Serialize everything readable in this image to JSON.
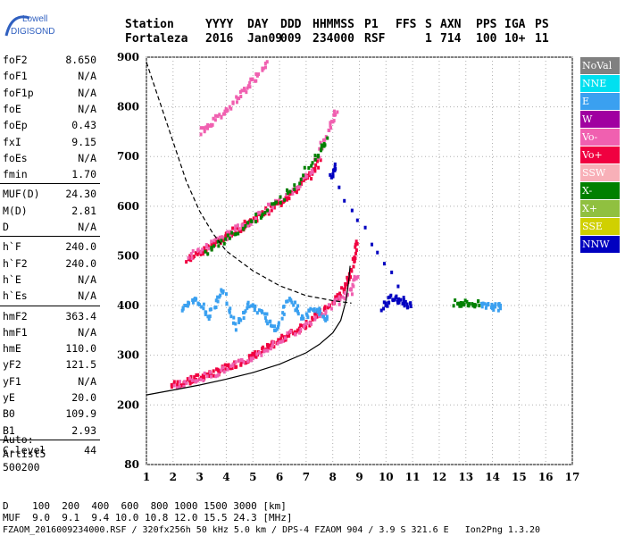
{
  "logo": {
    "line1": "Lowell",
    "line2": "DIGISONDE"
  },
  "header": {
    "line1": [
      "Station",
      "YYYY",
      "DAY",
      "DDD",
      "HHMMSS",
      "P1",
      "FFS",
      "S",
      "AXN",
      "PPS",
      "IGA",
      "PS"
    ],
    "line2": [
      "Fortaleza",
      "2016",
      "Jan09",
      "009",
      "234000",
      "RSF",
      "",
      "1",
      "714",
      "100",
      "10+",
      "11"
    ]
  },
  "params": {
    "group1": [
      [
        "foF2",
        "8.650"
      ],
      [
        "foF1",
        "N/A"
      ],
      [
        "foF1p",
        "N/A"
      ],
      [
        "foE",
        "N/A"
      ],
      [
        "foEp",
        "0.43"
      ],
      [
        "fxI",
        "9.15"
      ],
      [
        "foEs",
        "N/A"
      ],
      [
        "fmin",
        "1.70"
      ]
    ],
    "group2": [
      [
        "MUF(D)",
        "24.30"
      ],
      [
        "M(D)",
        "2.81"
      ],
      [
        "D",
        "N/A"
      ]
    ],
    "group3": [
      [
        "h`F",
        "240.0"
      ],
      [
        "h`F2",
        "240.0"
      ],
      [
        "h`E",
        "N/A"
      ],
      [
        "h`Es",
        "N/A"
      ]
    ],
    "group4": [
      [
        "hmF2",
        "363.4"
      ],
      [
        "hmF1",
        "N/A"
      ],
      [
        "hmE",
        "110.0"
      ],
      [
        "yF2",
        "121.5"
      ],
      [
        "yF1",
        "N/A"
      ],
      [
        "yE",
        "20.0"
      ],
      [
        "B0",
        "109.9"
      ],
      [
        "B1",
        "2.93"
      ]
    ],
    "group5": [
      [
        "C-level",
        "44"
      ]
    ]
  },
  "auto": {
    "line1": "Auto:",
    "line2": "Artist5",
    "line3": "500200"
  },
  "legend": [
    {
      "label": "NoVal",
      "color": "#808080"
    },
    {
      "label": "NNE",
      "color": "#00e0f0"
    },
    {
      "label": "E",
      "color": "#3aa0f0"
    },
    {
      "label": "W",
      "color": "#a000a0"
    },
    {
      "label": "Vo-",
      "color": "#f060b0"
    },
    {
      "label": "Vo+",
      "color": "#f00040"
    },
    {
      "label": "SSW",
      "color": "#f8b0b8"
    },
    {
      "label": "X-",
      "color": "#008000"
    },
    {
      "label": "X+",
      "color": "#90c040"
    },
    {
      "label": "SSE",
      "color": "#d0d000"
    },
    {
      "label": "NNW",
      "color": "#0000c0"
    }
  ],
  "bottom": {
    "line1": "D    100  200  400  600  800 1000 1500 3000 [km]",
    "line2": "MUF  9.0  9.1  9.4 10.0 10.8 12.0 15.5 24.3 [MHz]",
    "line3": "FZAOM_2016009234000.RSF / 320fx256h 50 kHz 5.0 km / DPS-4 FZAOM 904 / 3.9 S 321.6 E   Ion2Png 1.3.20"
  },
  "chart_data": {
    "type": "scatter",
    "xlim": [
      1,
      17
    ],
    "ylim": [
      80,
      900
    ],
    "x_ticks": [
      1,
      2,
      3,
      4,
      5,
      6,
      7,
      8,
      9,
      10,
      11,
      12,
      13,
      14,
      15,
      16,
      17
    ],
    "y_ticks": [
      80,
      200,
      300,
      400,
      500,
      600,
      700,
      800,
      900
    ],
    "grid": true,
    "series": [
      {
        "name": "Vo+",
        "color": "#f00040",
        "traces": [
          [
            [
              1.9,
              243
            ],
            [
              2.5,
              250
            ],
            [
              3,
              260
            ],
            [
              3.5,
              268
            ],
            [
              4,
              278
            ],
            [
              4.5,
              290
            ],
            [
              5,
              302
            ],
            [
              5.5,
              318
            ],
            [
              6,
              335
            ],
            [
              6.5,
              350
            ],
            [
              7,
              368
            ],
            [
              7.5,
              390
            ],
            [
              8,
              410
            ],
            [
              8.4,
              440
            ],
            [
              8.7,
              480
            ],
            [
              8.9,
              540
            ]
          ],
          [
            [
              2.5,
              495
            ],
            [
              3,
              510
            ],
            [
              3.5,
              528
            ],
            [
              4,
              545
            ],
            [
              4.5,
              560
            ],
            [
              5,
              578
            ],
            [
              5.5,
              595
            ],
            [
              6,
              612
            ],
            [
              6.5,
              632
            ],
            [
              7,
              660
            ],
            [
              7.5,
              695
            ]
          ]
        ]
      },
      {
        "name": "Vo-",
        "color": "#f060b0",
        "traces": [
          [
            [
              2,
              242
            ],
            [
              3,
              258
            ],
            [
              4,
              276
            ],
            [
              5,
              300
            ],
            [
              6,
              334
            ],
            [
              7,
              366
            ],
            [
              8,
              405
            ],
            [
              8.6,
              430
            ],
            [
              8.9,
              470
            ]
          ],
          [
            [
              2.5,
              500
            ],
            [
              3.5,
              530
            ],
            [
              4.5,
              562
            ],
            [
              5.5,
              598
            ],
            [
              6.5,
              636
            ],
            [
              7.2,
              680
            ],
            [
              7.8,
              760
            ],
            [
              8.1,
              800
            ]
          ],
          [
            [
              3,
              755
            ],
            [
              3.5,
              775
            ],
            [
              4,
              800
            ],
            [
              4.5,
              830
            ],
            [
              5,
              860
            ],
            [
              5.5,
              890
            ]
          ]
        ]
      },
      {
        "name": "X-",
        "color": "#008000",
        "traces": [
          [
            [
              3.2,
              510
            ],
            [
              4.2,
              545
            ],
            [
              5.2,
              585
            ],
            [
              6.2,
              625
            ],
            [
              7.3,
              700
            ],
            [
              7.8,
              740
            ]
          ],
          [
            [
              12.5,
              410
            ],
            [
              13,
              408
            ],
            [
              13.5,
              405
            ]
          ]
        ]
      },
      {
        "name": "E",
        "color": "#3aa0f0",
        "traces": [
          [
            [
              2.3,
              395
            ],
            [
              2.8,
              420
            ],
            [
              3.3,
              380
            ],
            [
              3.8,
              440
            ],
            [
              4.3,
              360
            ],
            [
              4.8,
              410
            ],
            [
              5.3,
              390
            ],
            [
              5.8,
              350
            ],
            [
              6.3,
              420
            ],
            [
              6.8,
              380
            ],
            [
              7.3,
              400
            ],
            [
              7.8,
              370
            ]
          ],
          [
            [
              13.5,
              402
            ],
            [
              14,
              401
            ],
            [
              14.3,
              400
            ]
          ]
        ]
      },
      {
        "name": "NNW",
        "color": "#0000c0",
        "traces": [
          [
            [
              9.8,
              400
            ],
            [
              10.2,
              420
            ],
            [
              10.5,
              410
            ],
            [
              10.9,
              405
            ],
            [
              7.9,
              660
            ],
            [
              8.1,
              690
            ]
          ]
        ]
      }
    ],
    "curves": [
      {
        "name": "dashed",
        "style": "dashed",
        "points": [
          [
            1,
            890
          ],
          [
            1.5,
            810
          ],
          [
            2,
            730
          ],
          [
            2.5,
            650
          ],
          [
            3,
            590
          ],
          [
            3.5,
            545
          ],
          [
            4,
            510
          ],
          [
            5,
            470
          ],
          [
            6,
            440
          ],
          [
            7,
            420
          ],
          [
            8,
            410
          ],
          [
            8.7,
            405
          ]
        ]
      },
      {
        "name": "profile",
        "style": "solid",
        "points": [
          [
            1,
            220
          ],
          [
            2,
            230
          ],
          [
            3,
            240
          ],
          [
            4,
            252
          ],
          [
            5,
            265
          ],
          [
            6,
            282
          ],
          [
            7,
            305
          ],
          [
            7.5,
            322
          ],
          [
            8,
            345
          ],
          [
            8.3,
            370
          ],
          [
            8.5,
            410
          ],
          [
            8.6,
            450
          ],
          [
            8.65,
            480
          ]
        ]
      }
    ]
  }
}
